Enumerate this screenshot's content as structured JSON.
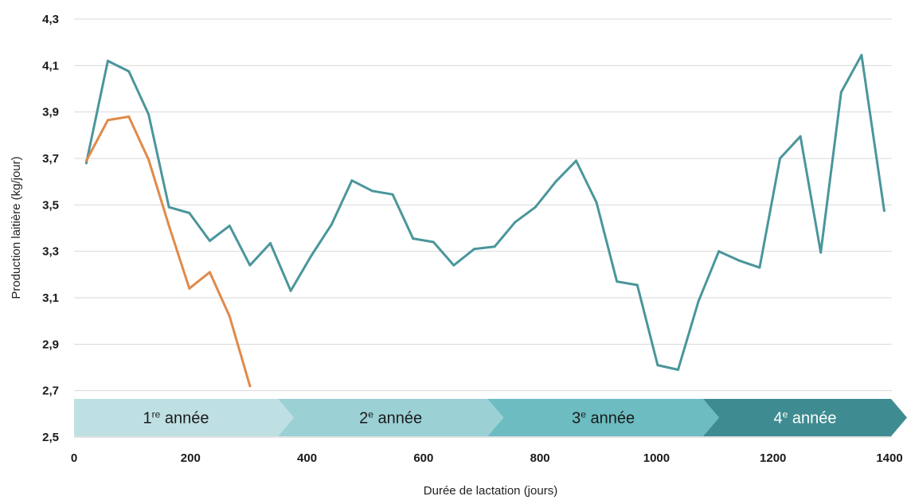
{
  "chart_data": {
    "type": "line",
    "xlabel": "Durée de lactation (jours)",
    "ylabel": "Production laitière (kg/jour)",
    "xlim": [
      0,
      1400
    ],
    "ylim": [
      2.5,
      4.3
    ],
    "x_ticks": [
      "0",
      "200",
      "400",
      "600",
      "800",
      "1000",
      "1200",
      "1400"
    ],
    "x_tick_values": [
      0,
      200,
      400,
      600,
      800,
      1000,
      1200,
      1400
    ],
    "y_ticks": [
      "2,5",
      "2,7",
      "2,9",
      "3,1",
      "3,3",
      "3,5",
      "3,7",
      "3,9",
      "4,1",
      "4,3"
    ],
    "y_tick_values": [
      2.5,
      2.7,
      2.9,
      3.1,
      3.3,
      3.5,
      3.7,
      3.9,
      4.1,
      4.3
    ],
    "grid": "horizontal",
    "series": [
      {
        "color": "#4a969b",
        "x": [
          21,
          58,
          94,
          128,
          163,
          198,
          233,
          267,
          302,
          337,
          372,
          407,
          442,
          477,
          512,
          547,
          582,
          617,
          652,
          687,
          722,
          757,
          792,
          827,
          862,
          897,
          932,
          967,
          1002,
          1037,
          1072,
          1107,
          1142,
          1177,
          1212,
          1247,
          1282,
          1317,
          1352,
          1391
        ],
        "values": [
          3.68,
          4.12,
          4.075,
          3.89,
          3.49,
          3.465,
          3.345,
          3.41,
          3.24,
          3.335,
          3.13,
          3.28,
          3.415,
          3.605,
          3.56,
          3.545,
          3.355,
          3.34,
          3.24,
          3.31,
          3.32,
          3.425,
          3.49,
          3.6,
          3.69,
          3.51,
          3.17,
          3.155,
          2.81,
          2.79,
          3.085,
          3.3,
          3.26,
          3.23,
          3.7,
          3.795,
          3.295,
          3.985,
          4.145,
          3.475
        ]
      },
      {
        "color": "#e08a4a",
        "x": [
          21,
          58,
          94,
          128,
          163,
          198,
          233,
          267,
          302
        ],
        "values": [
          3.69,
          3.865,
          3.88,
          3.695,
          3.41,
          3.14,
          3.21,
          3.02,
          2.72
        ]
      }
    ],
    "phases": [
      {
        "prefix": "1",
        "sup": "re",
        "suffix": " année",
        "start": 0,
        "end": 350,
        "color": "#bfe0e3",
        "text_color": "#1a1a1a"
      },
      {
        "prefix": "2",
        "sup": "e",
        "suffix": " année",
        "start": 350,
        "end": 710,
        "color": "#9bd0d5",
        "text_color": "#1a1a1a"
      },
      {
        "prefix": "3",
        "sup": "e",
        "suffix": " année",
        "start": 710,
        "end": 1080,
        "color": "#6cbcc2",
        "text_color": "#1a1a1a"
      },
      {
        "prefix": "4",
        "sup": "e",
        "suffix": " année",
        "start": 1080,
        "end": 1440,
        "color": "#3e8c92",
        "text_color": "#ffffff"
      }
    ]
  }
}
